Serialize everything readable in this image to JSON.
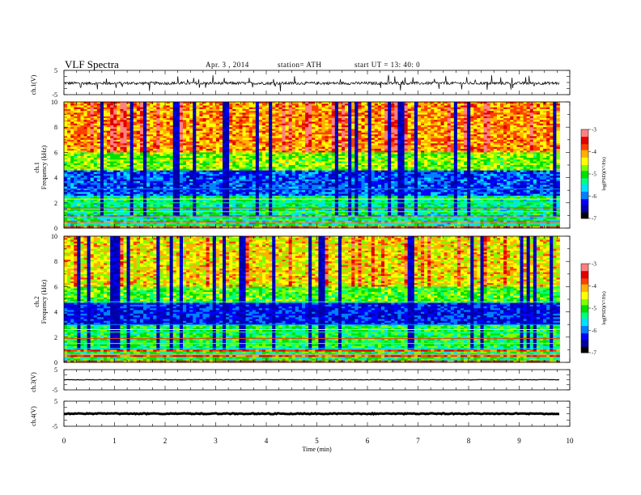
{
  "header": {
    "title": "VLF  Spectra",
    "date": "Apr. 3  , 2014",
    "station": "station= ATH",
    "start": "start  UT =   13: 40: 0"
  },
  "colors": {
    "colormap": [
      "#000000",
      "#0000aa",
      "#0000ff",
      "#0080ff",
      "#00e0ff",
      "#00ff80",
      "#00e000",
      "#80ff00",
      "#ffff00",
      "#ffb000",
      "#ff4000",
      "#e00000",
      "#ff8080",
      "#ffffff"
    ]
  },
  "chart_data": [
    {
      "type": "line",
      "panel": "ch.1 waveform",
      "ylabel": "ch.1(V)",
      "ylim": [
        -5,
        5
      ],
      "yticks": [
        "5",
        "-5"
      ],
      "x_range_min": [
        0,
        9.8
      ],
      "description_level": -0.3,
      "amplitude_approx": 1.0
    },
    {
      "type": "heatmap",
      "panel": "ch.1 spectrogram",
      "ylabel": "ch.1\nFrequency (kHz)",
      "ylim": [
        0,
        10
      ],
      "yticks": [
        "0",
        "2",
        "4",
        "6",
        "8",
        "10"
      ],
      "x_range_min": [
        0,
        9.8
      ],
      "colorbar": {
        "label": "log(PSD)(V²/Hz)",
        "range": [
          -7,
          -3
        ],
        "ticks": [
          "-3",
          "-4",
          "-5",
          "-6",
          "-7"
        ]
      }
    },
    {
      "type": "heatmap",
      "panel": "ch.2 spectrogram",
      "ylabel": "ch.2\nFrequency (kHz)",
      "ylim": [
        0,
        10
      ],
      "yticks": [
        "0",
        "2",
        "4",
        "6",
        "8",
        "10"
      ],
      "x_range_min": [
        0,
        9.8
      ],
      "colorbar": {
        "label": "log(PSD)(V²/Hz)",
        "range": [
          -7,
          -3
        ],
        "ticks": [
          "-3",
          "-4",
          "-5",
          "-6",
          "-7"
        ]
      }
    },
    {
      "type": "line",
      "panel": "ch.3 waveform",
      "ylabel": "ch.3(V)",
      "ylim": [
        -5,
        5
      ],
      "yticks": [
        "5",
        "-5"
      ],
      "x_range_min": [
        0,
        9.8
      ],
      "level": 0
    },
    {
      "type": "line",
      "panel": "ch.4 waveform",
      "ylabel": "ch.4(V)",
      "ylim": [
        -5,
        5
      ],
      "yticks": [
        "5",
        "-5"
      ],
      "x_range_min": [
        0,
        9.8
      ],
      "level": 0
    }
  ],
  "xaxis": {
    "label": "Time  (min)",
    "ticks": [
      "0",
      "1",
      "2",
      "3",
      "4",
      "5",
      "6",
      "7",
      "8",
      "9",
      "10"
    ],
    "range": [
      0,
      10
    ]
  }
}
